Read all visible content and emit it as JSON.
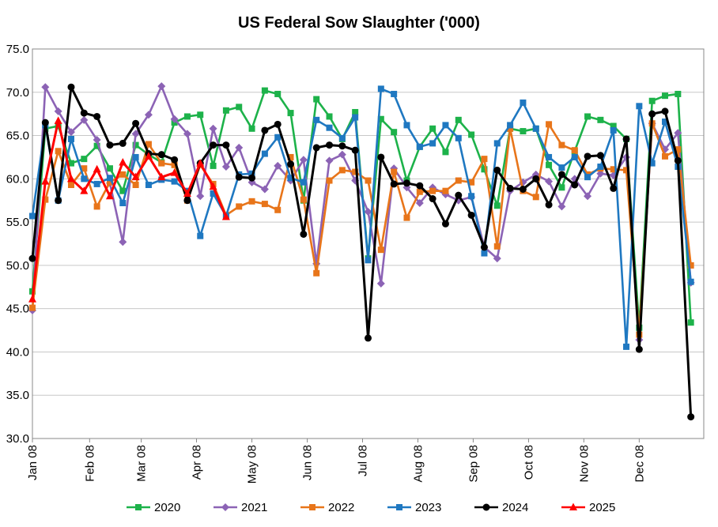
{
  "chart_data": {
    "type": "line",
    "title": "US Federal Sow Slaughter ('000)",
    "xlabel": "",
    "ylabel": "",
    "ylim": [
      30,
      75
    ],
    "yticks": [
      30,
      35,
      40,
      45,
      50,
      55,
      60,
      65,
      70,
      75
    ],
    "ytick_labels": [
      "30.0",
      "35.0",
      "40.0",
      "45.0",
      "50.0",
      "55.0",
      "60.0",
      "65.0",
      "70.0",
      "75.0"
    ],
    "xlim": [
      0,
      52
    ],
    "xticks": [
      0,
      4.43,
      8.43,
      12.71,
      17,
      21.29,
      25.57,
      29.86,
      34.14,
      38.43,
      42.71,
      47
    ],
    "xtick_labels": [
      "Jan 08",
      "Feb 08",
      "Mar 08",
      "Apr 08",
      "May 08",
      "Jun 08",
      "Jul 08",
      "Aug 08",
      "Sep 08",
      "Oct 08",
      "Nov 08",
      "Dec 08"
    ],
    "grid": true,
    "legend_position": "bottom",
    "series": [
      {
        "name": "2020",
        "color": "#1db24a",
        "marker": "square",
        "values": [
          47.0,
          65.8,
          66.1,
          61.8,
          62.3,
          63.8,
          61.2,
          58.6,
          63.9,
          62.8,
          61.9,
          66.5,
          67.2,
          67.4,
          61.5,
          67.9,
          68.3,
          65.8,
          70.2,
          69.8,
          67.6,
          57.5,
          69.2,
          67.2,
          64.6,
          67.7,
          50.8,
          66.9,
          65.4,
          59.8,
          63.7,
          65.8,
          63.1,
          66.8,
          65.1,
          61.1,
          56.9,
          65.8,
          65.5,
          65.8,
          61.6,
          59.0,
          63.2,
          67.2,
          66.8,
          66.1,
          64.6,
          42.8,
          69.0,
          69.6,
          69.8,
          43.4
        ]
      },
      {
        "name": "2021",
        "color": "#8c63b5",
        "marker": "diamond",
        "values": [
          44.8,
          70.6,
          67.8,
          65.4,
          66.8,
          64.5,
          59.5,
          52.7,
          65.2,
          67.4,
          70.7,
          66.9,
          65.2,
          58.0,
          65.8,
          61.4,
          63.6,
          59.6,
          58.8,
          61.5,
          59.8,
          62.2,
          50.2,
          62.1,
          62.8,
          59.8,
          56.2,
          47.9,
          61.2,
          59.0,
          57.2,
          59.0,
          58.2,
          57.5,
          57.9,
          52.1,
          50.8,
          58.6,
          59.6,
          60.5,
          59.7,
          56.8,
          60.0,
          58.0,
          60.6,
          60.4,
          62.5,
          41.4,
          66.4,
          63.4,
          65.3,
          48.0
        ]
      },
      {
        "name": "2022",
        "color": "#e8751a",
        "marker": "square",
        "values": [
          45.1,
          57.6,
          63.2,
          59.3,
          61.2,
          56.8,
          59.6,
          60.5,
          59.3,
          64.0,
          61.8,
          61.6,
          57.5,
          61.6,
          59.4,
          55.8,
          56.8,
          57.4,
          57.1,
          56.4,
          62.5,
          57.6,
          49.1,
          59.8,
          61.0,
          60.8,
          59.8,
          51.8,
          60.8,
          55.5,
          58.5,
          58.6,
          58.6,
          59.8,
          59.6,
          62.3,
          52.2,
          65.8,
          58.6,
          57.9,
          66.3,
          63.9,
          63.3,
          60.5,
          61.2,
          61.1,
          61.0,
          42.0,
          66.4,
          62.6,
          63.4,
          50.0
        ]
      },
      {
        "name": "2023",
        "color": "#1f78c1",
        "marker": "square",
        "values": [
          55.7,
          66.2,
          57.5,
          64.6,
          60.0,
          59.4,
          60.1,
          57.2,
          62.5,
          59.3,
          59.9,
          59.7,
          58.6,
          53.4,
          58.3,
          55.7,
          60.5,
          60.6,
          62.9,
          64.8,
          60.1,
          59.6,
          66.8,
          65.9,
          64.7,
          67.1,
          50.6,
          70.4,
          69.8,
          66.2,
          63.7,
          64.1,
          66.2,
          64.7,
          58.0,
          51.4,
          64.1,
          66.2,
          68.8,
          65.8,
          62.5,
          61.3,
          62.5,
          60.2,
          61.4,
          65.6,
          40.6,
          68.4,
          61.8,
          66.6,
          61.4,
          48.1
        ]
      },
      {
        "name": "2024",
        "color": "#000000",
        "marker": "circle",
        "values": [
          50.8,
          66.5,
          57.5,
          70.6,
          67.6,
          67.2,
          63.9,
          64.1,
          66.4,
          62.9,
          62.8,
          62.2,
          57.5,
          61.8,
          63.9,
          63.9,
          60.2,
          60.1,
          65.6,
          66.3,
          61.7,
          53.6,
          63.6,
          63.9,
          63.8,
          63.3,
          41.6,
          62.5,
          59.4,
          59.5,
          59.2,
          57.7,
          54.8,
          58.1,
          55.8,
          52.1,
          61.0,
          58.9,
          58.8,
          60.0,
          57.0,
          60.5,
          59.3,
          62.6,
          62.7,
          58.9,
          64.6,
          40.3,
          67.5,
          67.8,
          62.1,
          32.5
        ]
      },
      {
        "name": "2025",
        "color": "#ff0000",
        "marker": "triangle",
        "values": [
          46.1,
          59.7,
          66.7,
          60.0,
          58.6,
          61.1,
          58.0,
          61.9,
          60.2,
          62.6,
          60.2,
          60.7,
          58.3,
          61.8,
          59.1,
          55.6
        ]
      }
    ]
  }
}
